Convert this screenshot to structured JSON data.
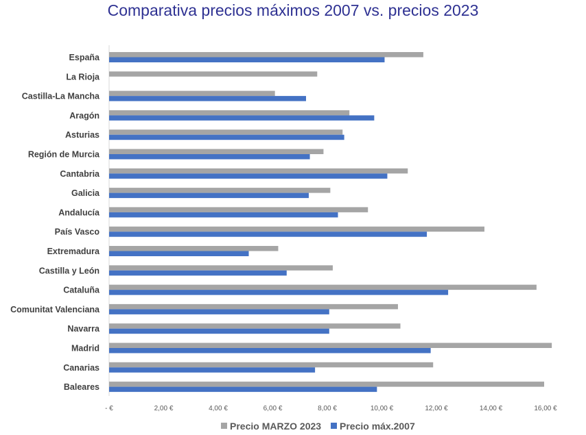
{
  "chart_data": {
    "type": "bar",
    "orientation": "horizontal",
    "title": "Comparativa precios máximos 2007 vs. precios 2023",
    "categories": [
      "España",
      "La Rioja",
      "Castilla-La Mancha",
      "Aragón",
      "Asturias",
      "Región de Murcia",
      "Cantabria",
      "Galicia",
      "Andalucía",
      "País Vasco",
      "Extremadura",
      "Castilla y León",
      "Cataluña",
      "Comunitat Valenciana",
      "Navarra",
      "Madrid",
      "Canarias",
      "Baleares"
    ],
    "series": [
      {
        "name": "Precio MARZO 2023",
        "color": "#a5a5a5",
        "values": [
          11.52,
          7.63,
          6.08,
          8.81,
          8.56,
          7.86,
          10.95,
          8.11,
          9.49,
          13.76,
          6.2,
          8.2,
          15.67,
          10.59,
          10.68,
          16.23,
          11.88,
          15.95
        ]
      },
      {
        "name": "Precio máx.2007",
        "color": "#4472c4",
        "values": [
          10.1,
          null,
          7.22,
          9.72,
          8.62,
          7.36,
          10.2,
          7.32,
          8.39,
          11.65,
          5.12,
          6.51,
          12.43,
          8.07,
          8.07,
          11.79,
          7.55,
          9.82
        ]
      }
    ],
    "xlim": [
      0,
      16
    ],
    "xticks": [
      0,
      2,
      4,
      6,
      8,
      10,
      12,
      14,
      16
    ],
    "xtick_labels": [
      "-   €",
      "2,00 €",
      "4,00 €",
      "6,00 €",
      "8,00 €",
      "10,00 €",
      "12,00 €",
      "14,00 €",
      "16,00 €"
    ],
    "grid": false,
    "legend_position": "bottom"
  }
}
